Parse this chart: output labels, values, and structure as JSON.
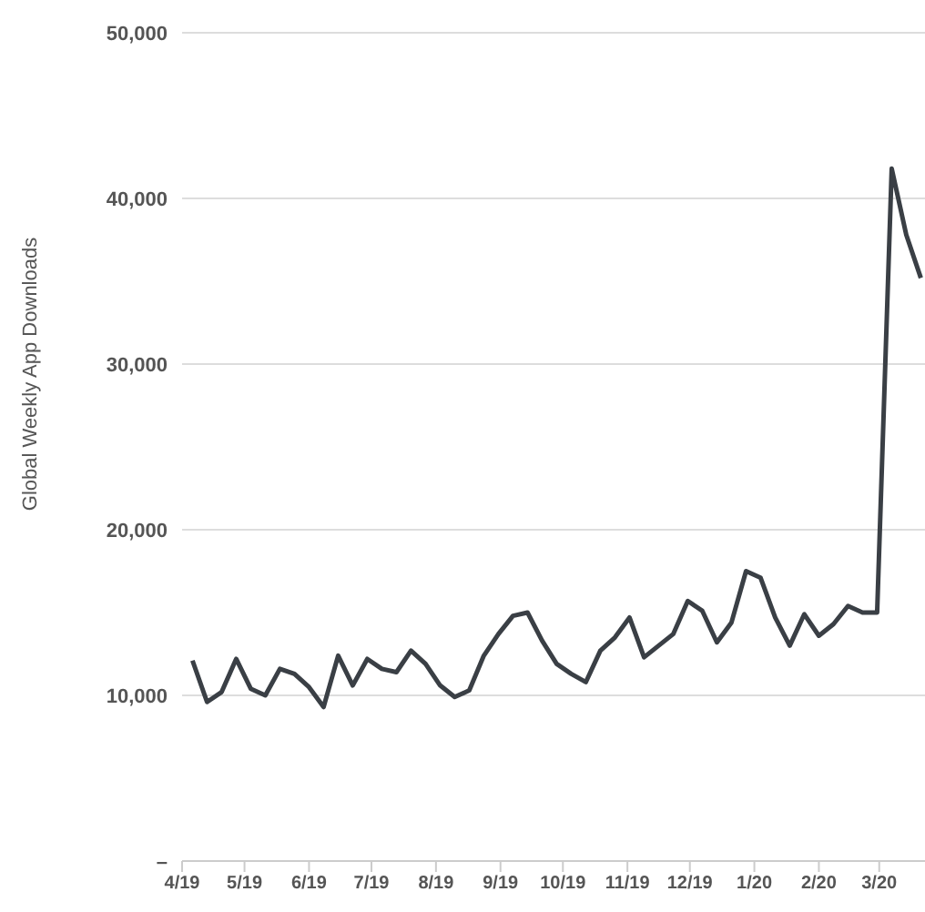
{
  "chart_data": {
    "type": "line",
    "ylabel": "Global Weekly App Downloads",
    "x": [
      "2019-04-06",
      "2019-04-13",
      "2019-04-20",
      "2019-04-27",
      "2019-05-04",
      "2019-05-11",
      "2019-05-18",
      "2019-05-25",
      "2019-06-01",
      "2019-06-08",
      "2019-06-15",
      "2019-06-22",
      "2019-06-29",
      "2019-07-06",
      "2019-07-13",
      "2019-07-20",
      "2019-07-27",
      "2019-08-03",
      "2019-08-10",
      "2019-08-17",
      "2019-08-24",
      "2019-08-31",
      "2019-09-07",
      "2019-09-14",
      "2019-09-21",
      "2019-09-28",
      "2019-10-05",
      "2019-10-12",
      "2019-10-19",
      "2019-10-26",
      "2019-11-02",
      "2019-11-09",
      "2019-11-16",
      "2019-11-23",
      "2019-11-30",
      "2019-12-07",
      "2019-12-14",
      "2019-12-21",
      "2019-12-28",
      "2020-01-04",
      "2020-01-11",
      "2020-01-18",
      "2020-01-25",
      "2020-02-01",
      "2020-02-08",
      "2020-02-15",
      "2020-02-22",
      "2020-02-29",
      "2020-03-07",
      "2020-03-14",
      "2020-03-21"
    ],
    "series": [
      {
        "color": "#3a3f45",
        "values": [
          12100,
          9600,
          10200,
          12200,
          10400,
          10000,
          11600,
          11300,
          10500,
          9300,
          12400,
          10600,
          12200,
          11600,
          11400,
          12700,
          11900,
          10600,
          9900,
          10300,
          12400,
          13700,
          14800,
          15000,
          13300,
          11900,
          11300,
          10800,
          12700,
          13500,
          14700,
          12300,
          13000,
          13700,
          15700,
          15100,
          13200,
          14400,
          17500,
          17100,
          14700,
          13000,
          14900,
          13600,
          14300,
          15400,
          15000,
          15000,
          41800,
          37800,
          35200
        ]
      }
    ],
    "xlim": [
      "2019-04-01",
      "2020-03-23"
    ],
    "xticks": [
      {
        "value": "2019-04-01",
        "label": "4/19"
      },
      {
        "value": "2019-05-01",
        "label": "5/19"
      },
      {
        "value": "2019-06-01",
        "label": "6/19"
      },
      {
        "value": "2019-07-01",
        "label": "7/19"
      },
      {
        "value": "2019-08-01",
        "label": "8/19"
      },
      {
        "value": "2019-09-01",
        "label": "9/19"
      },
      {
        "value": "2019-10-01",
        "label": "10/19"
      },
      {
        "value": "2019-11-01",
        "label": "11/19"
      },
      {
        "value": "2019-12-01",
        "label": "12/19"
      },
      {
        "value": "2020-01-01",
        "label": "1/20"
      },
      {
        "value": "2020-02-01",
        "label": "2/20"
      },
      {
        "value": "2020-03-01",
        "label": "3/20"
      }
    ],
    "ylim": [
      0,
      50000
    ],
    "yticks": [
      {
        "value": 0,
        "label": "–"
      },
      {
        "value": 10000,
        "label": "10,000"
      },
      {
        "value": 20000,
        "label": "20,000"
      },
      {
        "value": 30000,
        "label": "30,000"
      },
      {
        "value": 40000,
        "label": "40,000"
      },
      {
        "value": 50000,
        "label": "50,000"
      }
    ],
    "grid": "y",
    "legend": false,
    "marker": "none",
    "line_style": "solid"
  }
}
